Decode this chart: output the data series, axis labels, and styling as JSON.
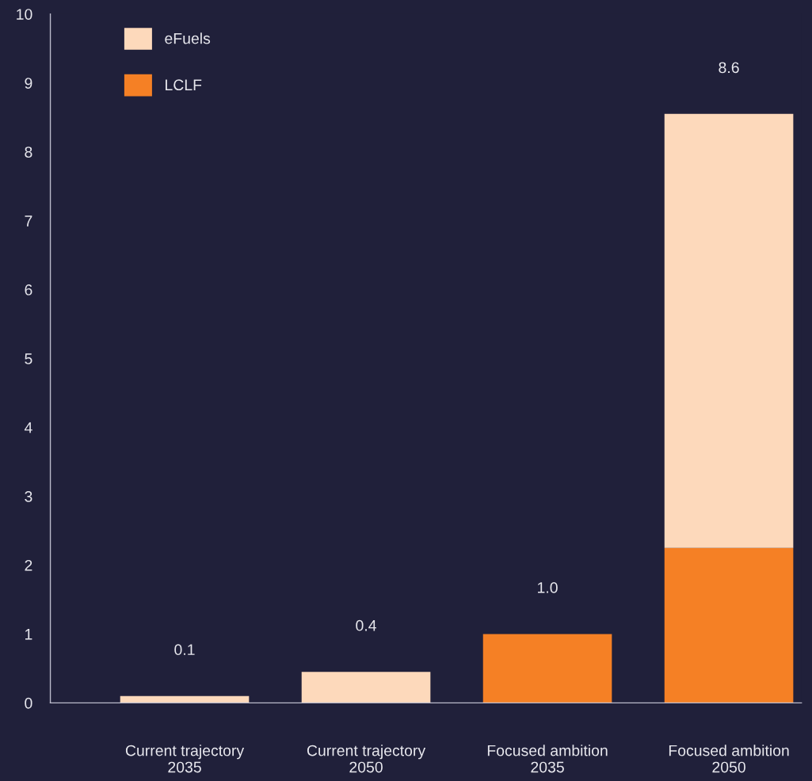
{
  "chart_data": {
    "type": "bar",
    "stacked": true,
    "categories": [
      "Current trajectory\n2035",
      "Current trajectory\n2050",
      "Focused ambition\n2035",
      "Focused ambition\n2050"
    ],
    "series": [
      {
        "name": "LCLF",
        "color": "#f58025",
        "values": [
          null,
          null,
          1.0,
          2.25
        ]
      },
      {
        "name": "eFuels",
        "color": "#fdd9bb",
        "values": [
          0.1,
          0.45,
          null,
          6.3
        ]
      }
    ],
    "totals": [
      "0.1",
      "0.4",
      "1.0",
      "8.6"
    ],
    "ylim": [
      0,
      10
    ],
    "yticks": [
      0,
      1,
      2,
      3,
      4,
      5,
      6,
      7,
      8,
      9,
      10
    ],
    "legend": "top left",
    "grid": false
  }
}
